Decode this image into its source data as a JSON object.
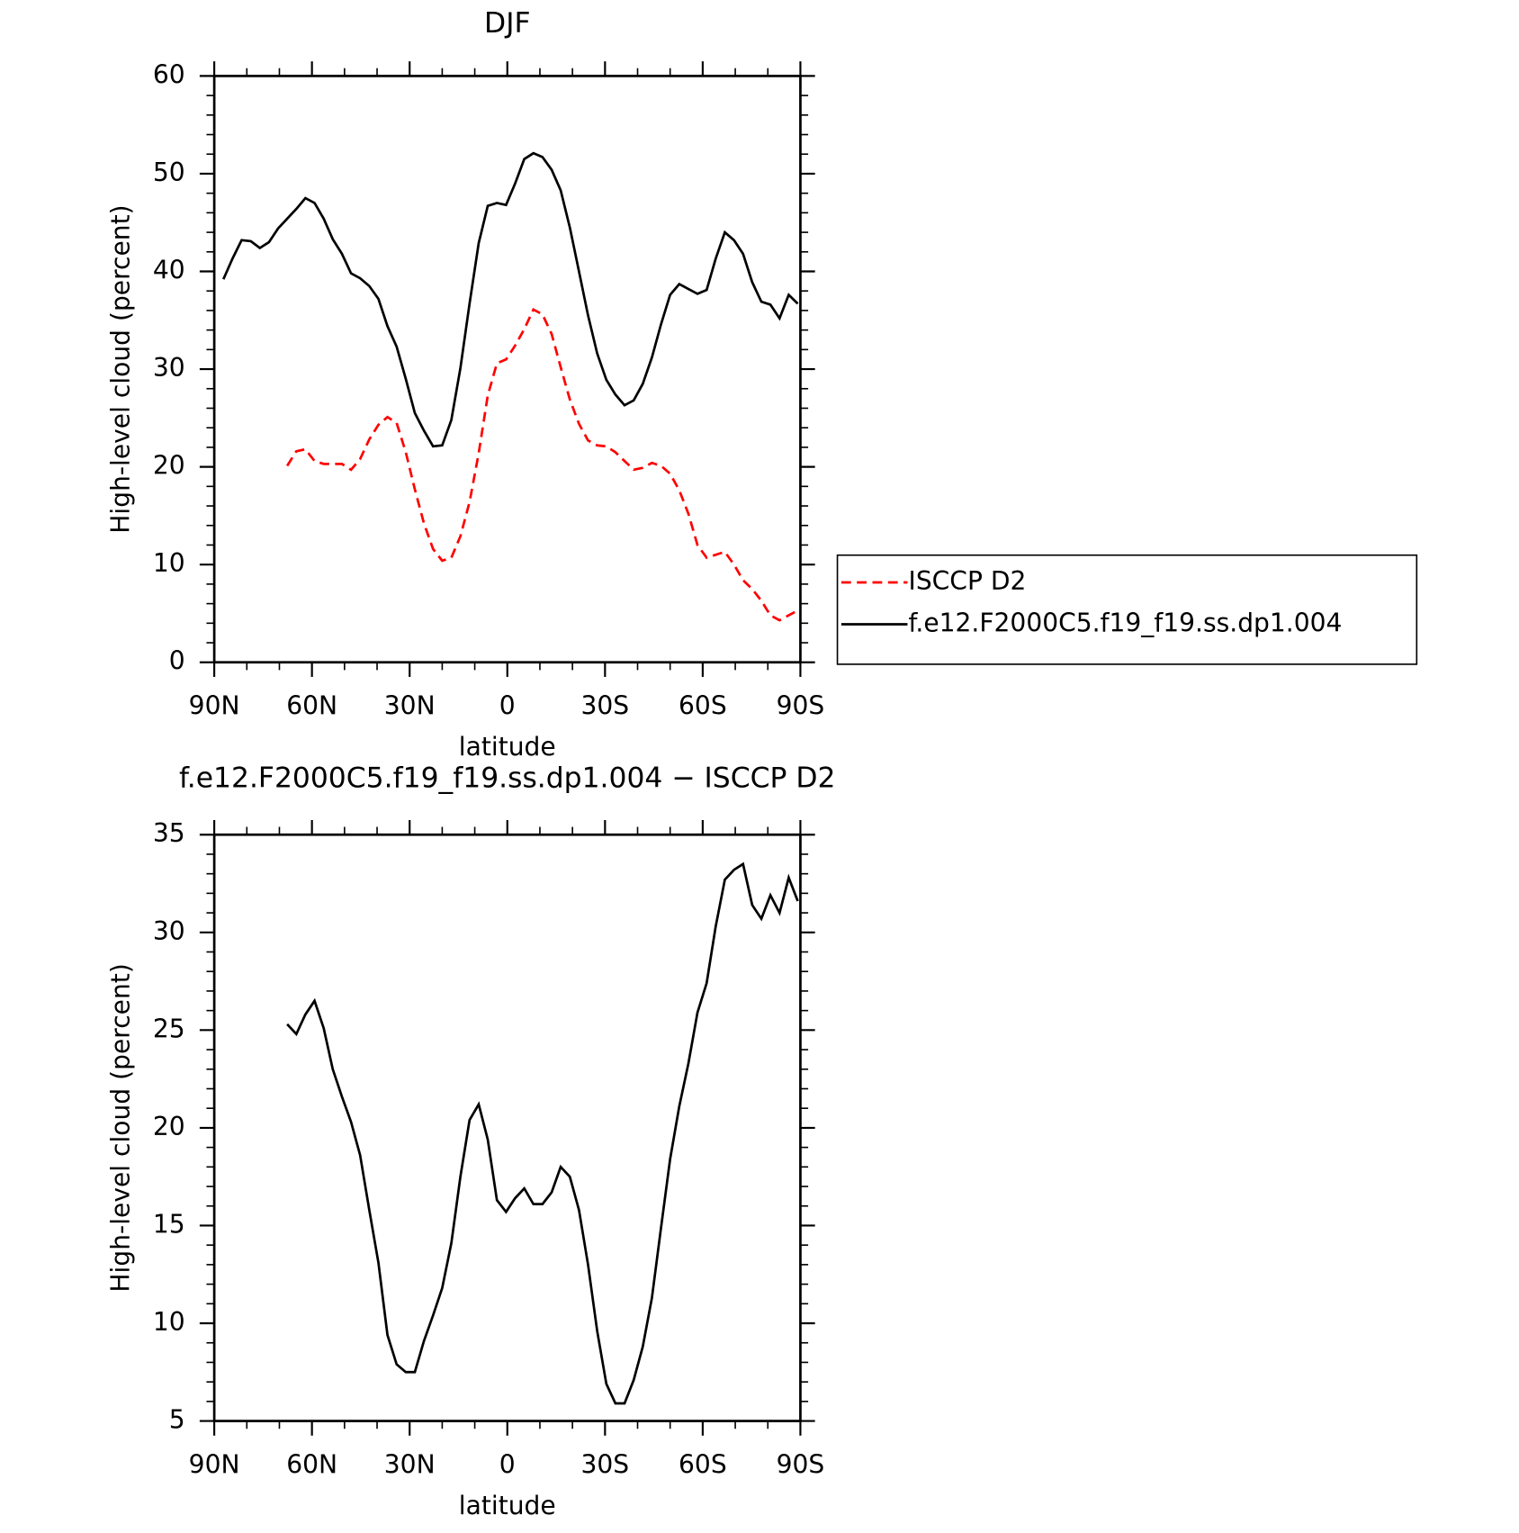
{
  "chart_data": [
    {
      "type": "line",
      "title": "DJF",
      "xlabel": "latitude",
      "ylabel": "High-level cloud (percent)",
      "x": [
        87.2,
        84.4,
        81.6,
        78.8,
        76,
        73.2,
        70.4,
        67.6,
        64.8,
        62,
        59.2,
        56.4,
        53.6,
        50.8,
        48,
        45.2,
        42.4,
        39.6,
        36.8,
        34,
        31.2,
        28.4,
        25.6,
        22.8,
        20,
        17.2,
        14.4,
        11.6,
        8.8,
        6,
        3.2,
        0.4,
        -2.4,
        -5.2,
        -8,
        -10.8,
        -13.6,
        -16.4,
        -19.2,
        -22,
        -24.8,
        -27.6,
        -30.4,
        -33.2,
        -36,
        -38.8,
        -41.6,
        -44.4,
        -47.2,
        -50,
        -52.8,
        -55.6,
        -58.4,
        -61.2,
        -64,
        -66.8,
        -69.6,
        -72.4,
        -75.2,
        -78,
        -80.8,
        -83.6,
        -86.4,
        -89.2
      ],
      "series": [
        {
          "name": "ISCCP D2",
          "color": "#ff0000",
          "linestyle": "dashed",
          "values": [
            null,
            null,
            null,
            null,
            null,
            null,
            null,
            20.1,
            21.6,
            21.8,
            20.6,
            20.3,
            20.3,
            20.3,
            19.7,
            20.8,
            22.8,
            24.3,
            25.1,
            24.5,
            21.5,
            17.7,
            14.2,
            11.6,
            10.4,
            10.7,
            12.9,
            16.4,
            21.4,
            27.3,
            30.6,
            31.0,
            32.4,
            34.1,
            36.1,
            35.6,
            33.6,
            30.2,
            26.9,
            24.4,
            22.7,
            22.2,
            22.1,
            21.5,
            20.6,
            19.7,
            19.9,
            20.4,
            20.1,
            19.3,
            17.6,
            15.2,
            12.0,
            10.7,
            11.0,
            11.3,
            10.0,
            8.4,
            7.5,
            6.3,
            4.8,
            4.3,
            4.8,
            5.3
          ]
        },
        {
          "name": "f.e12.F2000C5.f19_f19.ss.dp1.004",
          "color": "#000000",
          "linestyle": "solid",
          "values": [
            39.2,
            41.3,
            43.2,
            43.1,
            42.4,
            43.0,
            44.4,
            45.4,
            46.4,
            47.5,
            47.0,
            45.4,
            43.3,
            41.8,
            39.8,
            39.3,
            38.5,
            37.2,
            34.4,
            32.3,
            29.0,
            25.5,
            23.7,
            22.1,
            22.2,
            24.8,
            30.1,
            36.7,
            42.9,
            46.7,
            47.0,
            46.8,
            49.0,
            51.5,
            52.1,
            51.7,
            50.4,
            48.3,
            44.5,
            40.0,
            35.5,
            31.6,
            28.9,
            27.4,
            26.3,
            26.8,
            28.5,
            31.2,
            34.6,
            37.6,
            38.7,
            38.2,
            37.7,
            38.1,
            41.3,
            44.0,
            43.2,
            41.8,
            38.9,
            36.9,
            36.6,
            35.2,
            37.6,
            36.7
          ]
        }
      ],
      "xlim": [
        90,
        -90
      ],
      "xticks": [
        {
          "value": 90,
          "label": "90N"
        },
        {
          "value": 60,
          "label": "60N"
        },
        {
          "value": 30,
          "label": "30N"
        },
        0,
        {
          "value": -30,
          "label": "30S"
        },
        {
          "value": -60,
          "label": "60S"
        },
        {
          "value": -90,
          "label": "90S"
        }
      ],
      "ylim": [
        0,
        60
      ],
      "yticks": [
        0,
        10,
        20,
        30,
        40,
        50,
        60
      ],
      "legend": "right"
    },
    {
      "type": "line",
      "title": "f.e12.F2000C5.f19_f19.ss.dp1.004 − ISCCP D2",
      "xlabel": "latitude",
      "ylabel": "High-level cloud (percent)",
      "x": [
        87.2,
        84.4,
        81.6,
        78.8,
        76,
        73.2,
        70.4,
        67.6,
        64.8,
        62,
        59.2,
        56.4,
        53.6,
        50.8,
        48,
        45.2,
        42.4,
        39.6,
        36.8,
        34,
        31.2,
        28.4,
        25.6,
        22.8,
        20,
        17.2,
        14.4,
        11.6,
        8.8,
        6,
        3.2,
        0.4,
        -2.4,
        -5.2,
        -8,
        -10.8,
        -13.6,
        -16.4,
        -19.2,
        -22,
        -24.8,
        -27.6,
        -30.4,
        -33.2,
        -36,
        -38.8,
        -41.6,
        -44.4,
        -47.2,
        -50,
        -52.8,
        -55.6,
        -58.4,
        -61.2,
        -64,
        -66.8,
        -69.6,
        -72.4,
        -75.2,
        -78,
        -80.8,
        -83.6,
        -86.4,
        -89.2
      ],
      "series": [
        {
          "color": "#000000",
          "linestyle": "solid",
          "values": [
            null,
            null,
            null,
            null,
            null,
            null,
            null,
            25.3,
            24.8,
            25.8,
            26.5,
            25.1,
            23.0,
            21.6,
            20.3,
            18.6,
            15.8,
            13.1,
            9.4,
            7.9,
            7.5,
            7.5,
            9.1,
            10.4,
            11.8,
            14.1,
            17.5,
            20.4,
            21.2,
            19.4,
            16.3,
            15.7,
            16.4,
            16.9,
            16.1,
            16.1,
            16.7,
            18.0,
            17.5,
            15.8,
            13.0,
            9.6,
            6.9,
            5.9,
            5.9,
            7.1,
            8.8,
            11.3,
            14.9,
            18.4,
            21.1,
            23.3,
            25.9,
            27.4,
            30.3,
            32.7,
            33.2,
            33.5,
            31.4,
            30.7,
            31.9,
            31.0,
            32.8,
            31.6
          ]
        }
      ],
      "xlim": [
        90,
        -90
      ],
      "xticks": [
        {
          "value": 90,
          "label": "90N"
        },
        {
          "value": 60,
          "label": "60N"
        },
        {
          "value": 30,
          "label": "30N"
        },
        0,
        {
          "value": -30,
          "label": "30S"
        },
        {
          "value": -60,
          "label": "60S"
        },
        {
          "value": -90,
          "label": "90S"
        }
      ],
      "ylim": [
        5,
        35
      ],
      "yticks": [
        5,
        10,
        15,
        20,
        25,
        30,
        35
      ]
    }
  ]
}
